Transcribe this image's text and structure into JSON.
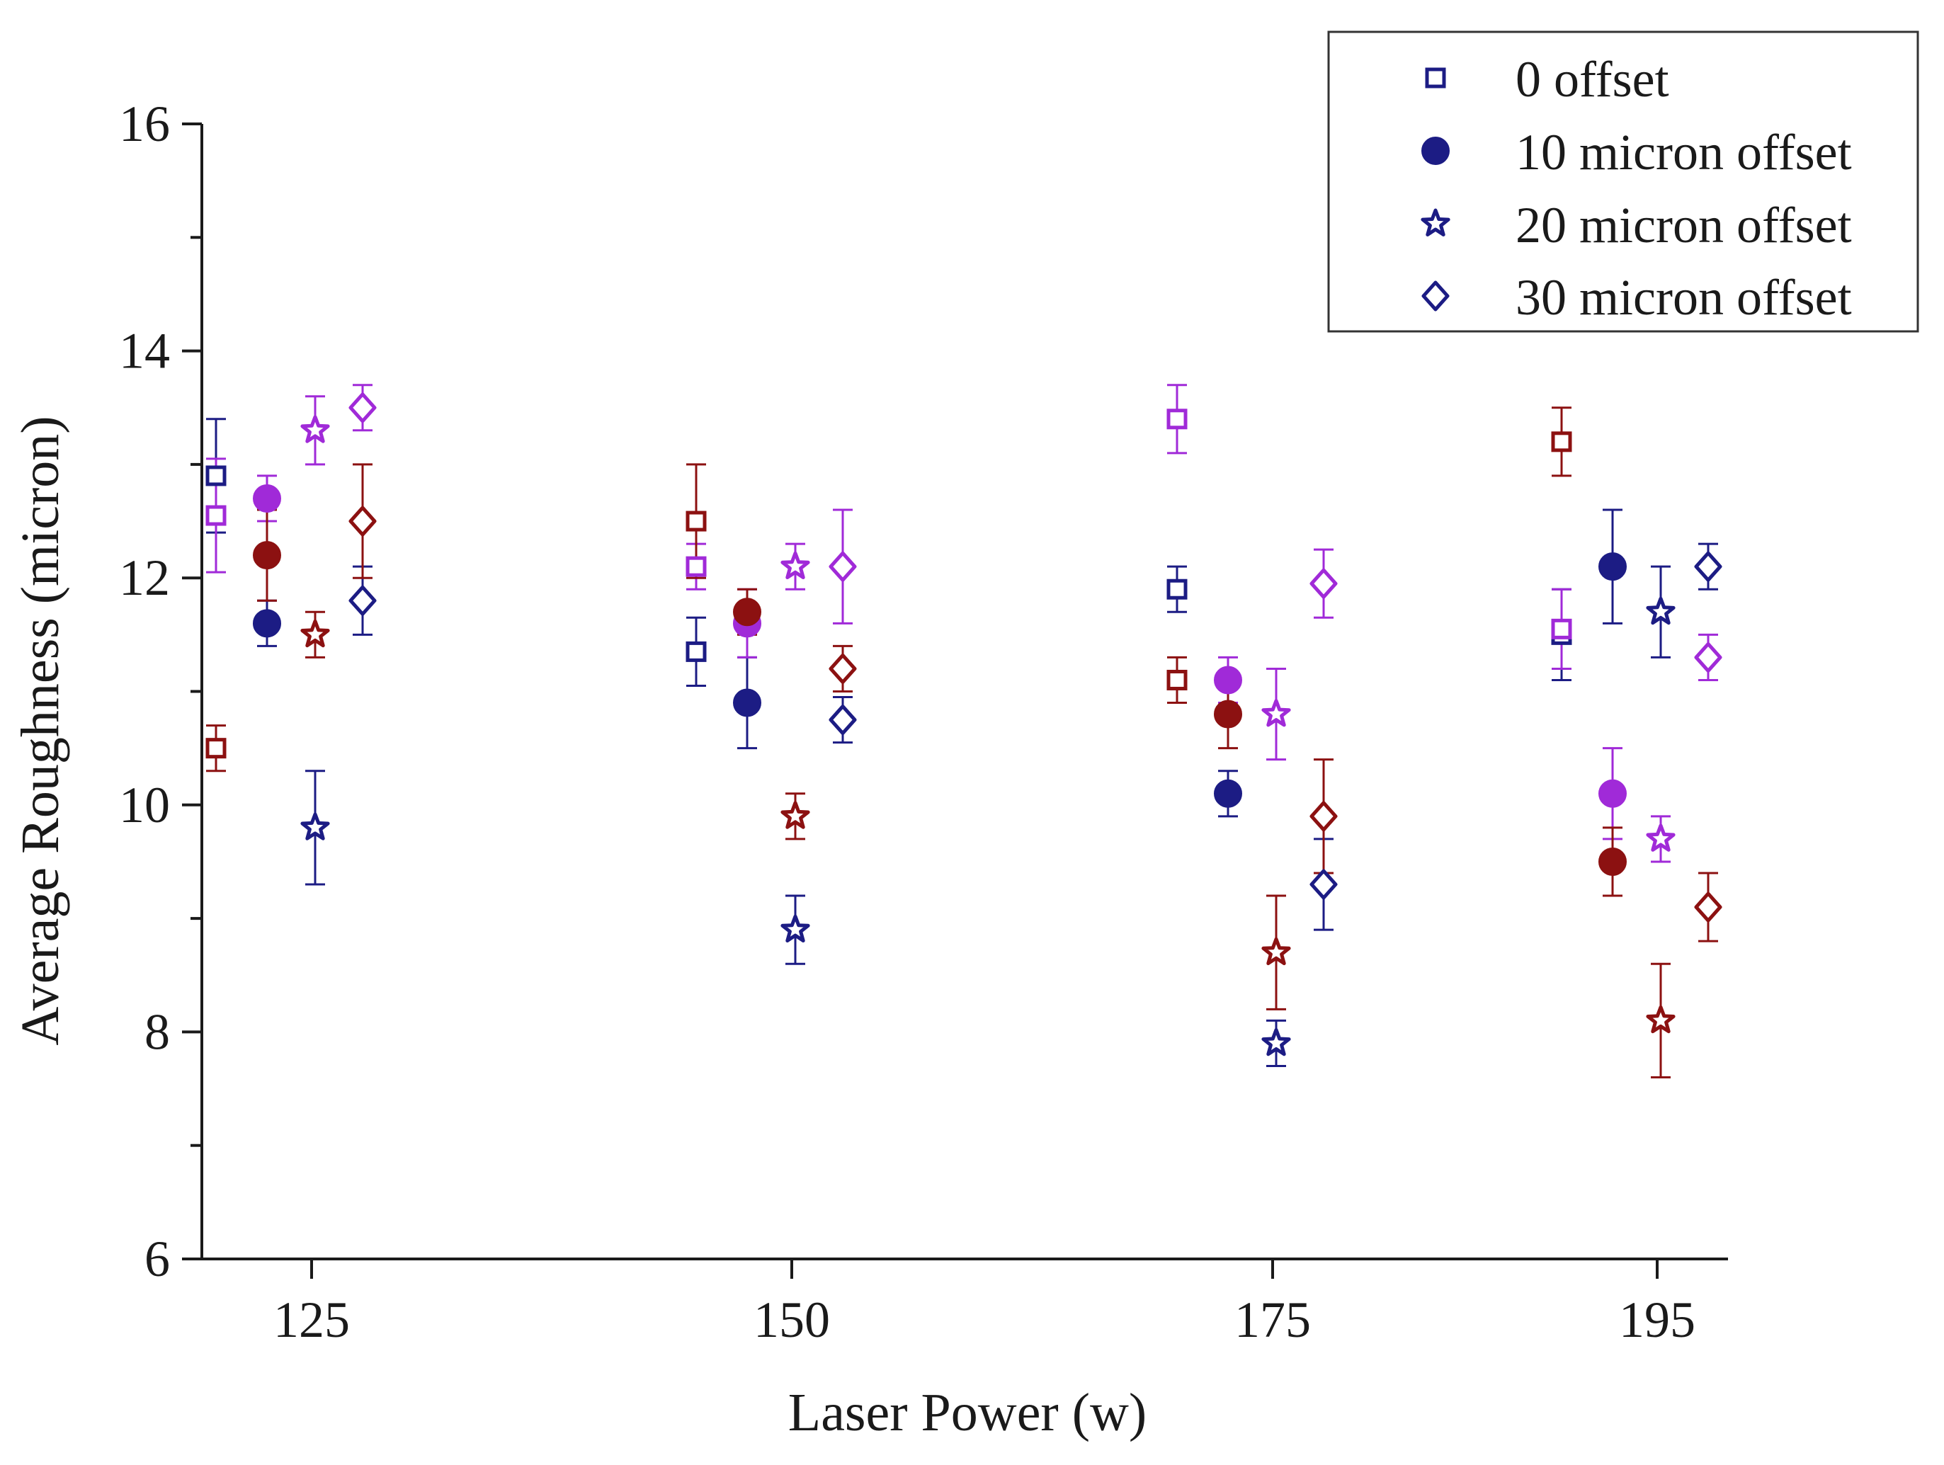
{
  "chart_data": {
    "type": "scatter",
    "title": "",
    "xlabel": "Laser Power (w)",
    "ylabel": "Average Roughness (micron)",
    "categories": [
      "125",
      "150",
      "175",
      "195"
    ],
    "ylim": [
      6,
      16
    ],
    "yticks": [
      6,
      8,
      10,
      12,
      14,
      16
    ],
    "grid": false,
    "legend_position": "top-right",
    "colors": {
      "navy": "#1c1c84",
      "purple": "#a02ad8",
      "maroon": "#8c1111"
    },
    "legend": [
      {
        "label": "0 offset",
        "marker": "square-open"
      },
      {
        "label": "10 micron offset",
        "marker": "circle-filled"
      },
      {
        "label": "20 micron offset",
        "marker": "star-open"
      },
      {
        "label": "30 micron offset",
        "marker": "diamond-open"
      }
    ],
    "series": [
      {
        "name": "0 offset - navy",
        "marker": "square-open",
        "color": "navy",
        "slot": 0,
        "values": [
          12.9,
          11.35,
          11.9,
          11.5
        ],
        "errors": [
          0.5,
          0.3,
          0.2,
          0.4
        ]
      },
      {
        "name": "0 offset - purple",
        "marker": "square-open",
        "color": "purple",
        "slot": 0,
        "values": [
          12.55,
          12.1,
          13.4,
          11.55
        ],
        "errors": [
          0.5,
          0.2,
          0.3,
          0.35
        ]
      },
      {
        "name": "0 offset - maroon",
        "marker": "square-open",
        "color": "maroon",
        "slot": 0,
        "values": [
          10.5,
          12.5,
          11.1,
          13.2
        ],
        "errors": [
          0.2,
          0.5,
          0.2,
          0.3
        ]
      },
      {
        "name": "10 micron offset - navy",
        "marker": "circle-filled",
        "color": "navy",
        "slot": 1,
        "values": [
          11.6,
          10.9,
          10.1,
          12.1
        ],
        "errors": [
          0.2,
          0.4,
          0.2,
          0.5
        ]
      },
      {
        "name": "10 micron offset - purple",
        "marker": "circle-filled",
        "color": "purple",
        "slot": 1,
        "values": [
          12.7,
          11.6,
          11.1,
          10.1
        ],
        "errors": [
          0.2,
          0.3,
          0.2,
          0.4
        ]
      },
      {
        "name": "10 micron offset - maroon",
        "marker": "circle-filled",
        "color": "maroon",
        "slot": 1,
        "values": [
          12.2,
          11.7,
          10.8,
          9.5
        ],
        "errors": [
          0.4,
          0.2,
          0.3,
          0.3
        ]
      },
      {
        "name": "20 micron offset - navy",
        "marker": "star-open",
        "color": "navy",
        "slot": 2,
        "values": [
          9.8,
          8.9,
          7.9,
          11.7
        ],
        "errors": [
          0.5,
          0.3,
          0.2,
          0.4
        ]
      },
      {
        "name": "20 micron offset - purple",
        "marker": "star-open",
        "color": "purple",
        "slot": 2,
        "values": [
          13.3,
          12.1,
          10.8,
          9.7
        ],
        "errors": [
          0.3,
          0.2,
          0.4,
          0.2
        ]
      },
      {
        "name": "20 micron offset - maroon",
        "marker": "star-open",
        "color": "maroon",
        "slot": 2,
        "values": [
          11.5,
          9.9,
          8.7,
          8.1
        ],
        "errors": [
          0.2,
          0.2,
          0.5,
          0.5
        ]
      },
      {
        "name": "30 micron offset - navy",
        "marker": "diamond-open",
        "color": "navy",
        "slot": 3,
        "values": [
          11.8,
          10.75,
          9.3,
          12.1
        ],
        "errors": [
          0.3,
          0.2,
          0.4,
          0.2
        ]
      },
      {
        "name": "30 micron offset - purple",
        "marker": "diamond-open",
        "color": "purple",
        "slot": 3,
        "values": [
          13.5,
          12.1,
          11.95,
          11.3
        ],
        "errors": [
          0.2,
          0.5,
          0.3,
          0.2
        ]
      },
      {
        "name": "30 micron offset - maroon",
        "marker": "diamond-open",
        "color": "maroon",
        "slot": 3,
        "values": [
          12.5,
          11.2,
          9.9,
          9.1
        ],
        "errors": [
          0.5,
          0.2,
          0.5,
          0.3
        ]
      }
    ]
  }
}
